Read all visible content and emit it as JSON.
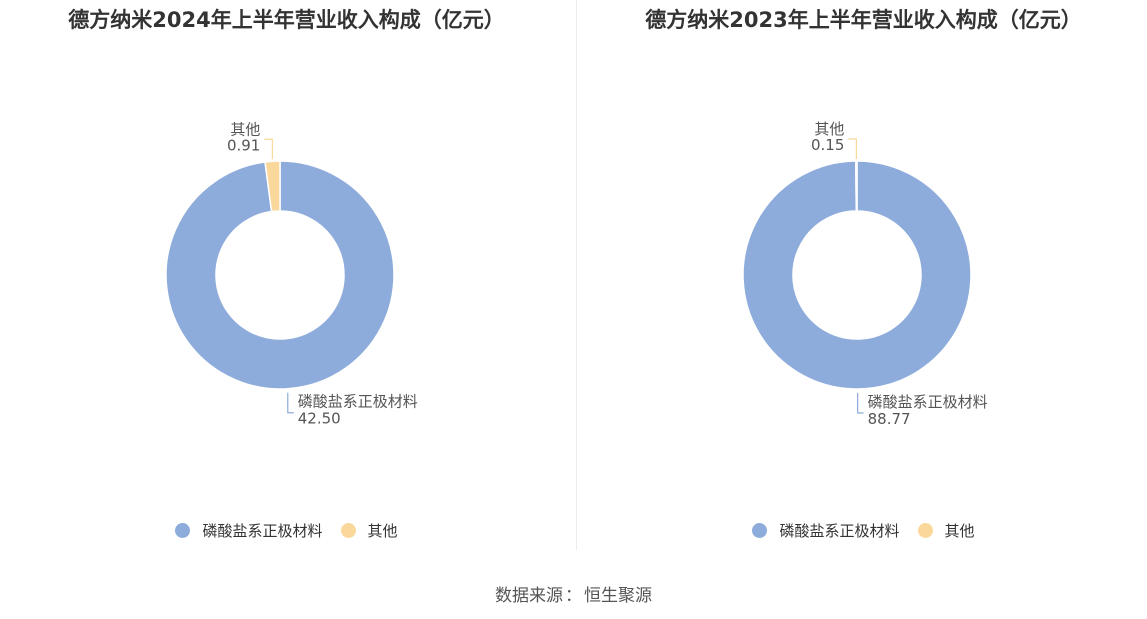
{
  "chart_data": [
    {
      "type": "pie",
      "title": "德方纳米2024年上半年营业收入构成（亿元）",
      "categories": [
        "磷酸盐系正极材料",
        "其他"
      ],
      "values": [
        42.5,
        0.91
      ],
      "value_labels": [
        "42.50",
        "0.91"
      ],
      "colors": [
        "#8eacdb",
        "#fad79b"
      ],
      "legend": [
        "磷酸盐系正极材料",
        "其他"
      ],
      "legend_position": "bottom",
      "donut": true
    },
    {
      "type": "pie",
      "title": "德方纳米2023年上半年营业收入构成（亿元）",
      "categories": [
        "磷酸盐系正极材料",
        "其他"
      ],
      "values": [
        88.77,
        0.15
      ],
      "value_labels": [
        "88.77",
        "0.15"
      ],
      "colors": [
        "#8eacdb",
        "#fad79b"
      ],
      "legend": [
        "磷酸盐系正极材料",
        "其他"
      ],
      "legend_position": "bottom",
      "donut": true
    }
  ],
  "footer": {
    "source_label": "数据来源",
    "source_separator": "：",
    "source_value": "恒生聚源"
  }
}
